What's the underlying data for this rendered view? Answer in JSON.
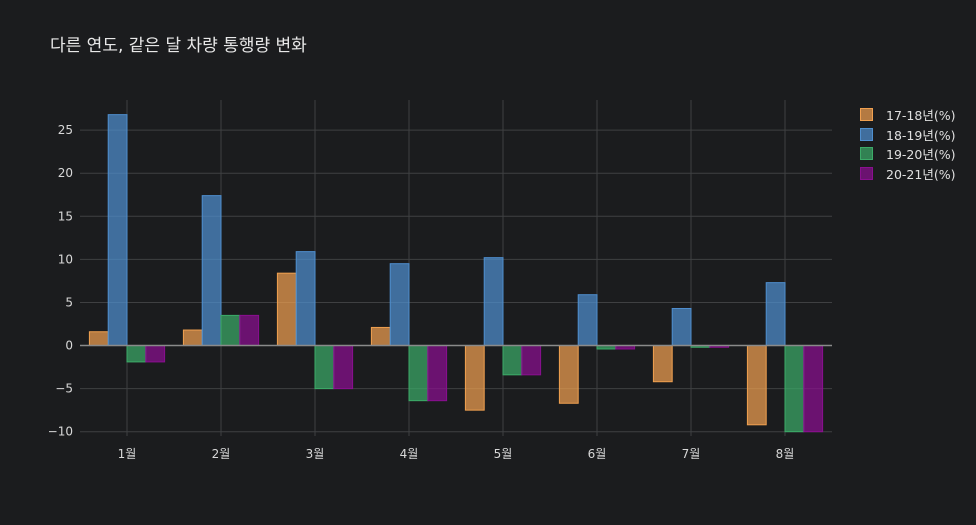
{
  "chart_data": {
    "type": "bar",
    "title": "다른 연도, 같은 달 차량 통행량 변화",
    "xlabel": "",
    "ylabel": "",
    "categories": [
      "1월",
      "2월",
      "3월",
      "4월",
      "5월",
      "6월",
      "7월",
      "8월"
    ],
    "series": [
      {
        "name": "17-18년(%)",
        "color": "#f0a050",
        "values": [
          1.6,
          1.8,
          8.4,
          2.1,
          -7.5,
          -6.7,
          -4.2,
          -9.2
        ]
      },
      {
        "name": "18-19년(%)",
        "color": "#4f8fcf",
        "values": [
          26.8,
          17.4,
          10.9,
          9.5,
          10.2,
          5.9,
          4.3,
          7.3
        ]
      },
      {
        "name": "19-20년(%)",
        "color": "#3cab68",
        "values": [
          -1.9,
          3.5,
          -5.0,
          -6.4,
          -3.4,
          -0.4,
          -0.2,
          -10.0
        ]
      },
      {
        "name": "20-21년(%)",
        "color": "#8a0f90",
        "values": [
          -1.9,
          3.5,
          -5.0,
          -6.4,
          -3.4,
          -0.4,
          -0.2,
          -10.0
        ]
      }
    ],
    "yticks": [
      -10,
      -5,
      0,
      5,
      10,
      15,
      20,
      25
    ],
    "ylim": [
      -10.5,
      28.5
    ],
    "grid": true,
    "legend_position": "top-right"
  }
}
